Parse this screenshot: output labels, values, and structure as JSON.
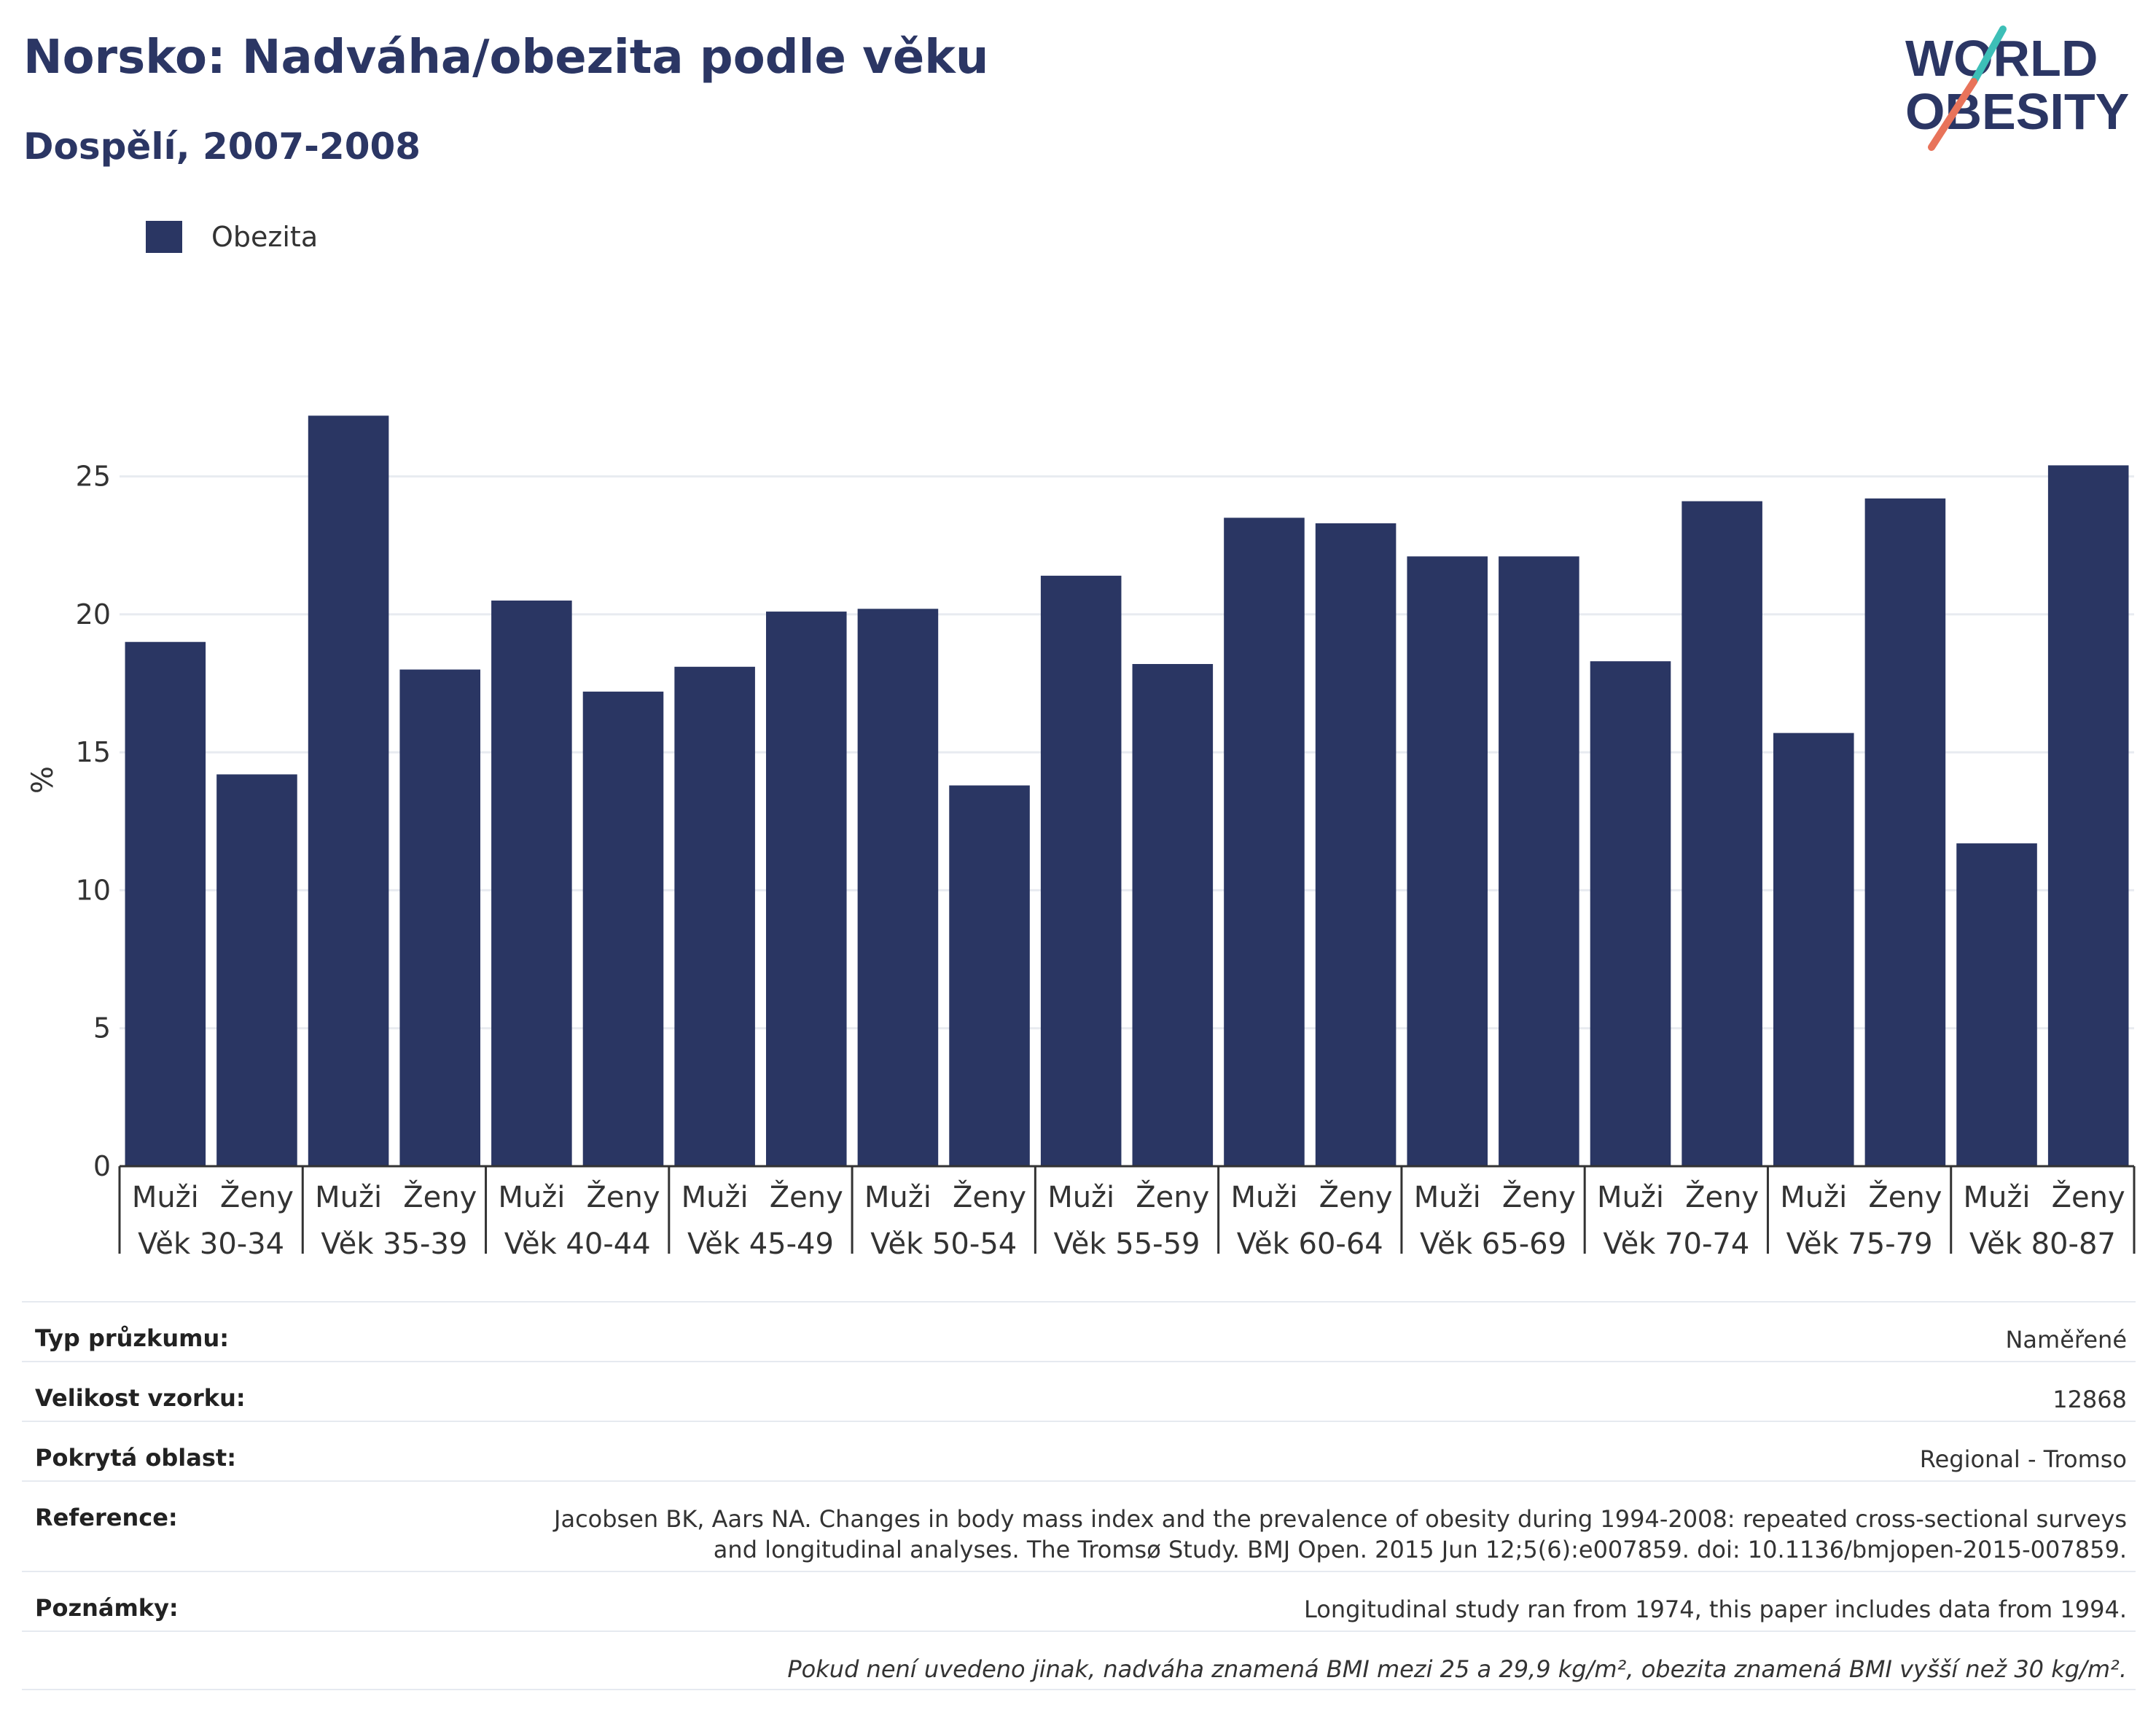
{
  "header": {
    "title": "Norsko: Nadváha/obezita podle věku",
    "subtitle": "Dospělí, 2007-2008"
  },
  "logo": {
    "line1": "WORLD",
    "line2": "OBESITY"
  },
  "colors": {
    "bar": "#2a3663",
    "title": "#2b3664",
    "grid": "#e8ebf0",
    "logo_teal": "#3dbfb7",
    "logo_coral": "#e8735a"
  },
  "chart_data": {
    "type": "bar",
    "ylabel": "%",
    "ylim": [
      0,
      28
    ],
    "yticks": [
      0,
      5,
      10,
      15,
      20,
      25
    ],
    "grid": true,
    "legend_position": "top-left",
    "groups": [
      "Věk 30-34",
      "Věk 35-39",
      "Věk 40-44",
      "Věk 45-49",
      "Věk 50-54",
      "Věk 55-59",
      "Věk 60-64",
      "Věk 65-69",
      "Věk 70-74",
      "Věk 75-79",
      "Věk 80-87"
    ],
    "subcategories": [
      "Muži",
      "Ženy"
    ],
    "series": [
      {
        "name": "Obezita",
        "values": [
          19.0,
          14.2,
          27.2,
          18.0,
          20.5,
          17.2,
          18.1,
          20.1,
          20.2,
          13.8,
          21.4,
          18.2,
          23.5,
          23.3,
          22.1,
          22.1,
          18.3,
          24.1,
          15.7,
          24.2,
          11.7,
          25.4
        ]
      }
    ]
  },
  "info": {
    "rows": [
      {
        "key": "Typ průzkumu:",
        "value": "Naměřené"
      },
      {
        "key": "Velikost vzorku:",
        "value": "12868"
      },
      {
        "key": "Pokrytá oblast:",
        "value": "Regional - Tromso"
      },
      {
        "key": "Reference:",
        "value_line1": "Jacobsen BK, Aars NA. Changes in body mass index and the prevalence of obesity during 1994-2008: repeated cross-sectional surveys",
        "value_line2": "and longitudinal analyses. The Tromsø Study. BMJ Open. 2015 Jun 12;5(6):e007859. doi: 10.1136/bmjopen-2015-007859."
      },
      {
        "key": "Poznámky:",
        "value": "Longitudinal study ran from 1974, this paper includes data from 1994."
      }
    ],
    "footnote": "Pokud není uvedeno jinak, nadváha znamená BMI mezi 25 a 29,9 kg/m², obezita znamená BMI vyšší než 30 kg/m²."
  }
}
